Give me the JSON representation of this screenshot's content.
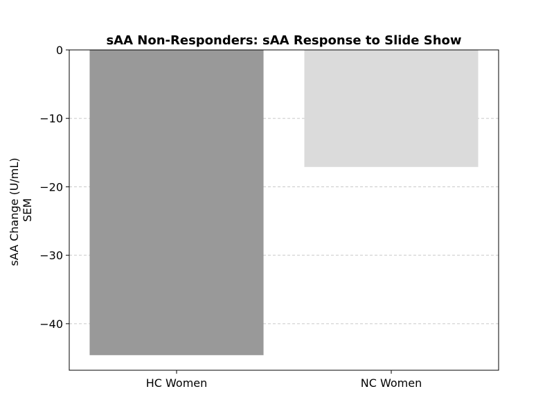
{
  "chart_data": {
    "type": "bar",
    "title": "sAA Non-Responders: sAA Response to Slide Show",
    "xlabel": "",
    "ylabel_lines": [
      "sAA Change (U/mL)",
      "SEM"
    ],
    "categories": [
      "HC Women",
      "NC Women"
    ],
    "values": [
      -44.6,
      -17.1
    ],
    "bar_colors": [
      "#999999",
      "#dbdbdb"
    ],
    "ylim": [
      -46.8,
      0
    ],
    "yticks": [
      0,
      -10,
      -20,
      -30,
      -40
    ],
    "ytick_labels": [
      "0",
      "−10",
      "−20",
      "−30",
      "−40"
    ],
    "grid": "y-dashed",
    "legend": "none"
  }
}
